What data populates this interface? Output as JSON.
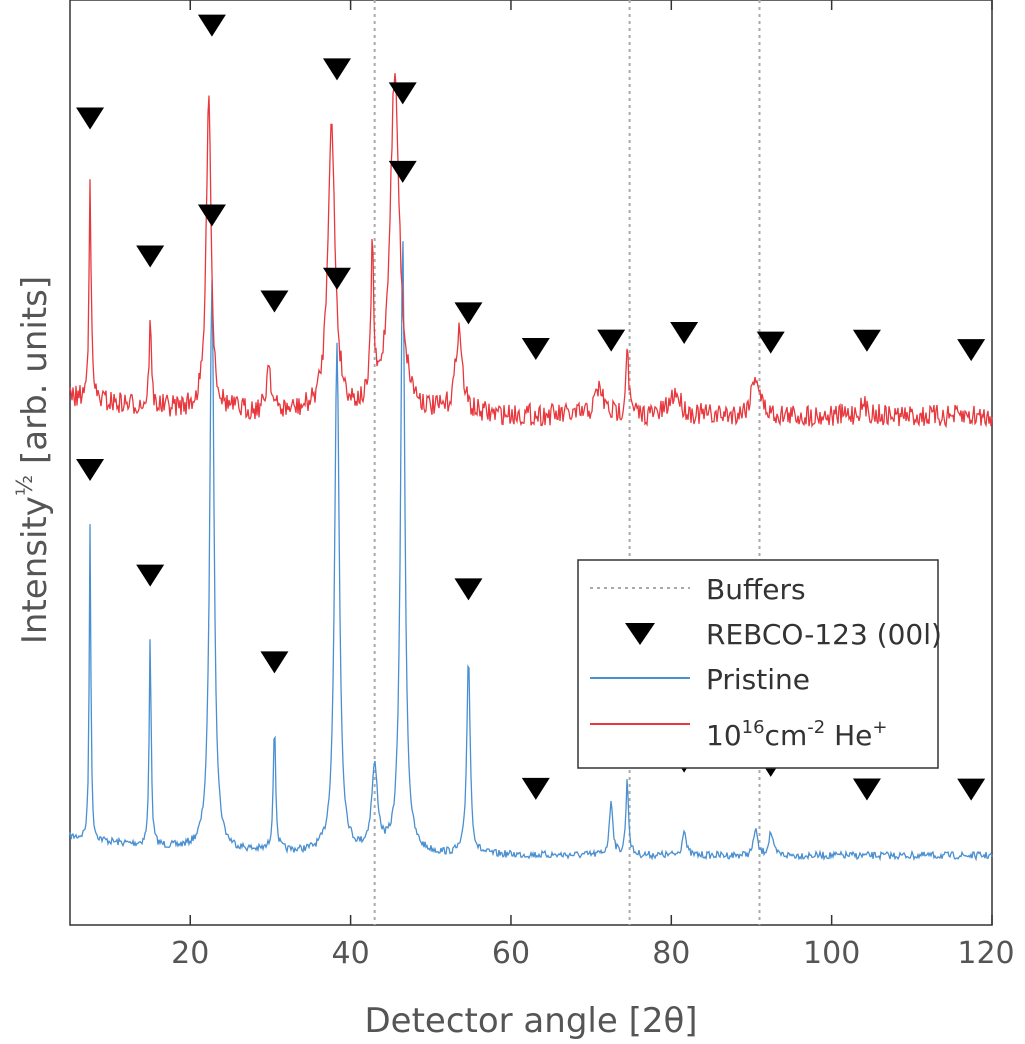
{
  "chart_data": {
    "type": "line",
    "xlabel": "Detector angle [2θ]",
    "ylabel": "Intensity",
    "ylabel_exponent": "½",
    "ylabel_unit": " [arb. units]",
    "xlim": [
      5,
      120
    ],
    "xticks": [
      20,
      40,
      60,
      80,
      100,
      120
    ],
    "y_ticks_shown": false,
    "grid": false,
    "legend_position": "center-right",
    "legend": [
      {
        "label": "Buffers",
        "kind": "dotted-line",
        "color": "#aaaaaa"
      },
      {
        "label": "REBCO-123 (00l)",
        "kind": "triangle-down",
        "color": "#000000"
      },
      {
        "label": "Pristine",
        "kind": "line",
        "color": "#4a8fd0"
      },
      {
        "label_parts": [
          "10",
          "16",
          "cm",
          "-2",
          " He",
          "+"
        ],
        "kind": "line",
        "color": "#e8383d"
      }
    ],
    "buffer_lines_x": [
      43,
      74.8,
      91
    ],
    "rebco_peaks_x": [
      7.5,
      15,
      22.7,
      30.5,
      38.3,
      46.5,
      54.7,
      63.1,
      72.5,
      81.6,
      92.4,
      104.4,
      117.4
    ],
    "series": [
      {
        "name": "Pristine",
        "color": "#4a8fd0",
        "baseline_frac": 0.925,
        "noise_frac": 0.004,
        "peaks": [
          {
            "x": 7.5,
            "h": 0.345,
            "w": 0.12
          },
          {
            "x": 15,
            "h": 0.23,
            "w": 0.14
          },
          {
            "x": 22.7,
            "h": 0.62,
            "w": 0.32
          },
          {
            "x": 30.5,
            "h": 0.135,
            "w": 0.18
          },
          {
            "x": 38.3,
            "h": 0.55,
            "w": 0.35
          },
          {
            "x": 43,
            "h": 0.09,
            "w": 0.45
          },
          {
            "x": 46.5,
            "h": 0.665,
            "w": 0.32
          },
          {
            "x": 54.7,
            "h": 0.215,
            "w": 0.25
          },
          {
            "x": 72.5,
            "h": 0.06,
            "w": 0.25
          },
          {
            "x": 74.5,
            "h": 0.08,
            "w": 0.2
          },
          {
            "x": 81.6,
            "h": 0.03,
            "w": 0.25
          },
          {
            "x": 90.5,
            "h": 0.03,
            "w": 0.25
          },
          {
            "x": 92.4,
            "h": 0.025,
            "w": 0.3
          }
        ]
      },
      {
        "name": "10¹⁶cm⁻² He⁺",
        "color": "#e8383d",
        "baseline_frac": 0.45,
        "noise_frac": 0.012,
        "peaks": [
          {
            "x": 7.5,
            "h": 0.25,
            "w": 0.15
          },
          {
            "x": 15,
            "h": 0.1,
            "w": 0.15
          },
          {
            "x": 22.3,
            "h": 0.35,
            "w": 0.35
          },
          {
            "x": 29.8,
            "h": 0.055,
            "w": 0.3
          },
          {
            "x": 37.6,
            "h": 0.31,
            "w": 0.55
          },
          {
            "x": 42.7,
            "h": 0.17,
            "w": 0.2
          },
          {
            "x": 45.5,
            "h": 0.365,
            "w": 0.7
          },
          {
            "x": 53.5,
            "h": 0.09,
            "w": 0.5
          },
          {
            "x": 71,
            "h": 0.03,
            "w": 0.6
          },
          {
            "x": 74.5,
            "h": 0.08,
            "w": 0.2
          },
          {
            "x": 80.5,
            "h": 0.025,
            "w": 0.8
          },
          {
            "x": 90.5,
            "h": 0.045,
            "w": 0.6
          },
          {
            "x": 104,
            "h": 0.01,
            "w": 0.8
          }
        ]
      }
    ]
  }
}
